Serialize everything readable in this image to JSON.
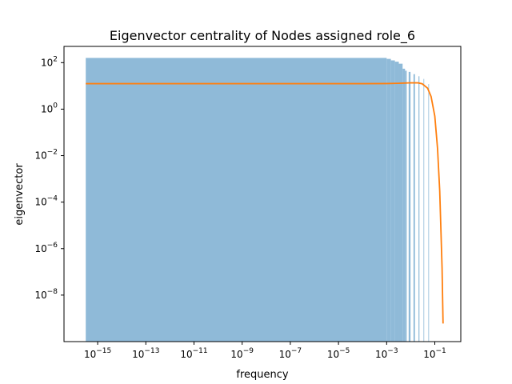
{
  "chart_data": {
    "type": "bar",
    "title": "Eigenvector centrality of Nodes assigned role_6",
    "xlabel": "frequency",
    "ylabel": "eigenvector",
    "xscale": "log",
    "yscale": "log",
    "xlim": [
      4e-17,
      1.2
    ],
    "ylim": [
      1e-10,
      500
    ],
    "x_ticks": [
      {
        "base": "10",
        "exp": "−15",
        "value": 1e-15
      },
      {
        "base": "10",
        "exp": "−13",
        "value": 1e-13
      },
      {
        "base": "10",
        "exp": "−11",
        "value": 1e-11
      },
      {
        "base": "10",
        "exp": "−9",
        "value": 1e-09
      },
      {
        "base": "10",
        "exp": "−7",
        "value": 1e-07
      },
      {
        "base": "10",
        "exp": "−5",
        "value": 1e-05
      },
      {
        "base": "10",
        "exp": "−3",
        "value": 0.001
      },
      {
        "base": "10",
        "exp": "−1",
        "value": 0.1
      }
    ],
    "y_ticks": [
      {
        "base": "10",
        "exp": "−8",
        "value": 1e-08
      },
      {
        "base": "10",
        "exp": "−6",
        "value": 1e-06
      },
      {
        "base": "10",
        "exp": "−4",
        "value": 0.0001
      },
      {
        "base": "10",
        "exp": "−2",
        "value": 0.01
      },
      {
        "base": "10",
        "exp": "0",
        "value": 1
      },
      {
        "base": "10",
        "exp": "2",
        "value": 100
      }
    ],
    "histogram": {
      "color": "#8fbad8",
      "bins": [
        {
          "x0": 3.2e-16,
          "x1": 0.001,
          "height": 160
        },
        {
          "x0": 0.001,
          "x1": 0.0015,
          "height": 145
        },
        {
          "x0": 0.0015,
          "x1": 0.0022,
          "height": 125
        },
        {
          "x0": 0.0022,
          "x1": 0.0032,
          "height": 110
        },
        {
          "x0": 0.0032,
          "x1": 0.0046,
          "height": 90
        },
        {
          "x0": 0.0046,
          "x1": 0.0058,
          "height": 55
        },
        {
          "x0": 0.0058,
          "x1": 0.0068,
          "height": 45
        },
        {
          "x0": 0.0082,
          "x1": 0.0098,
          "height": 40
        },
        {
          "x0": 0.013,
          "x1": 0.015,
          "height": 32
        },
        {
          "x0": 0.021,
          "x1": 0.023,
          "height": 26
        },
        {
          "x0": 0.034,
          "x1": 0.036,
          "height": 20
        },
        {
          "x0": 0.054,
          "x1": 0.057,
          "height": 12
        }
      ]
    },
    "curve": {
      "color": "#ff7f0e",
      "x": [
        3.2e-16,
        1e-14,
        1e-12,
        1e-10,
        1e-08,
        1e-06,
        0.0001,
        0.001,
        0.003,
        0.01,
        0.02,
        0.03,
        0.05,
        0.07,
        0.1,
        0.13,
        0.16,
        0.2,
        0.22
      ],
      "y": [
        12.5,
        12.5,
        12.5,
        12.5,
        12.5,
        12.5,
        12.5,
        12.6,
        12.9,
        13.6,
        13.5,
        12.3,
        8,
        3.5,
        0.5,
        0.02,
        0.0003,
        1.5e-07,
        6e-10
      ]
    }
  }
}
